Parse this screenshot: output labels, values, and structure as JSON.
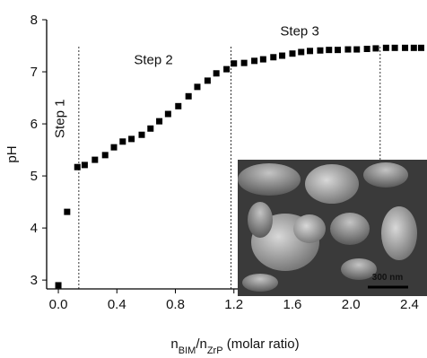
{
  "chart_data": {
    "type": "scatter",
    "y_label": "pH",
    "x_label": [
      {
        "text": "n"
      },
      {
        "text": "BIM",
        "sub": true
      },
      {
        "text": "/n"
      },
      {
        "text": "ZrP",
        "sub": true
      },
      {
        "text": " (molar ratio)"
      }
    ],
    "x": [
      0.0,
      0.06,
      0.13,
      0.18,
      0.25,
      0.32,
      0.38,
      0.44,
      0.5,
      0.57,
      0.63,
      0.69,
      0.75,
      0.82,
      0.89,
      0.95,
      1.02,
      1.08,
      1.15,
      1.2,
      1.27,
      1.34,
      1.4,
      1.47,
      1.53,
      1.6,
      1.66,
      1.72,
      1.79,
      1.85,
      1.91,
      1.98,
      2.04,
      2.11,
      2.17,
      2.24,
      2.3,
      2.37,
      2.43,
      2.48
    ],
    "values": [
      2.9,
      4.31,
      5.17,
      5.21,
      5.31,
      5.4,
      5.55,
      5.66,
      5.71,
      5.79,
      5.91,
      6.05,
      6.19,
      6.34,
      6.53,
      6.71,
      6.83,
      6.97,
      7.05,
      7.16,
      7.17,
      7.21,
      7.24,
      7.28,
      7.31,
      7.35,
      7.38,
      7.4,
      7.41,
      7.42,
      7.42,
      7.43,
      7.43,
      7.44,
      7.45,
      7.46,
      7.46,
      7.46,
      7.46,
      7.46
    ],
    "color": "#000000",
    "xlim": [
      -0.08,
      2.52
    ],
    "ylim": [
      2.83,
      8
    ],
    "xticks": [
      {
        "value": 0,
        "label": "0.0"
      },
      0.4,
      0.8,
      1.2,
      1.6,
      {
        "value": 2,
        "label": "2.0"
      },
      2.4
    ],
    "yticks": [
      3,
      4,
      5,
      6,
      7,
      8
    ],
    "dividers": [
      0.14,
      1.18,
      2.2
    ],
    "annotations": [
      {
        "text": "Step 1",
        "x": 0.04,
        "y": 6.1,
        "rotate": true
      },
      {
        "text": "Step 2",
        "x": 0.65,
        "y": 7.15
      },
      {
        "text": "Step 3",
        "x": 1.65,
        "y": 7.7
      }
    ],
    "inset_scale_label": "300 nm"
  }
}
